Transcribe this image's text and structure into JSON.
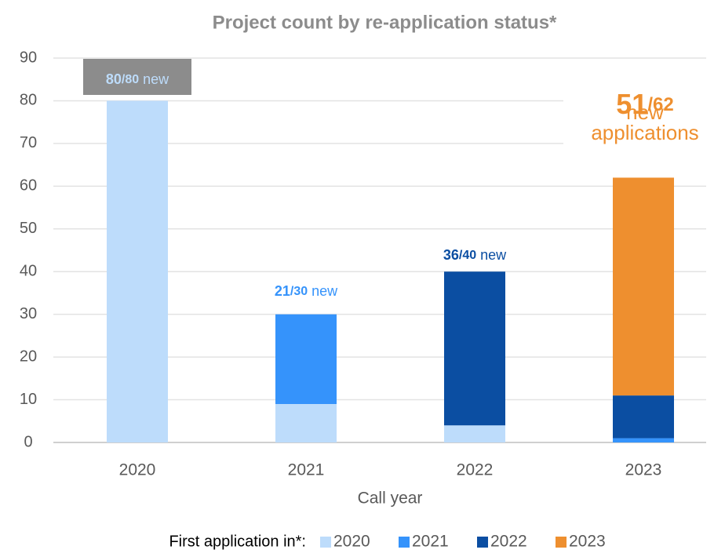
{
  "chart_data": {
    "type": "stacked_bar",
    "title": "Project count by re-application status*",
    "x_label": "Call year",
    "legend_title": "First application in*:",
    "legend_position": "bottom",
    "categories": [
      "2020",
      "2021",
      "2022",
      "2023"
    ],
    "series": [
      {
        "name": "2020",
        "color": "#bddcfb",
        "values": [
          80,
          9,
          4,
          0
        ]
      },
      {
        "name": "2021",
        "color": "#3593fb",
        "values": [
          0,
          21,
          0,
          1
        ]
      },
      {
        "name": "2022",
        "color": "#0b4ea2",
        "values": [
          0,
          0,
          36,
          10
        ]
      },
      {
        "name": "2023",
        "color": "#ee8f2f",
        "values": [
          0,
          0,
          0,
          51
        ]
      }
    ],
    "ylim": [
      0,
      90
    ],
    "yticks": [
      0,
      10,
      20,
      30,
      40,
      50,
      60,
      70,
      80,
      90
    ],
    "grid": true,
    "annotations": [
      {
        "lead": "80",
        "rest": "/80",
        "text": [
          "new"
        ]
      },
      {
        "lead": "21",
        "rest": "/30",
        "text": [
          "new"
        ]
      },
      {
        "lead": "36",
        "rest": "/40",
        "text": [
          "new"
        ]
      },
      {
        "lead": "51",
        "rest": "/62",
        "text": [
          "new",
          "applications"
        ]
      }
    ]
  }
}
